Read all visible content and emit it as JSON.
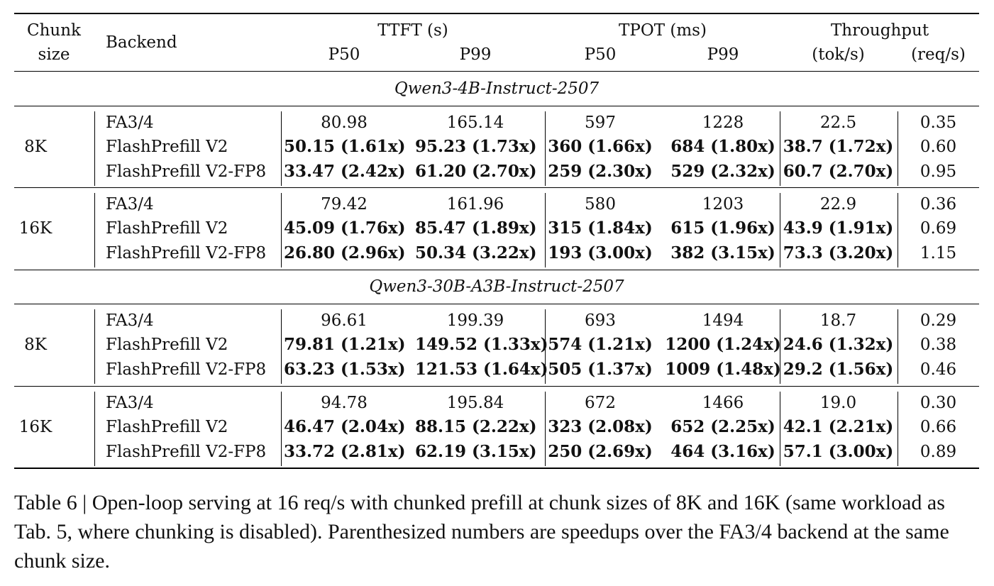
{
  "header": {
    "chunk_size_line1": "Chunk",
    "chunk_size_line2": "size",
    "backend": "Backend",
    "ttft": "TTFT (s)",
    "tpot": "TPOT (ms)",
    "throughput": "Throughput",
    "p50": "P50",
    "p99": "P99",
    "tok_s": "(tok/s)",
    "req_s": "(req/s)"
  },
  "sections": [
    {
      "title": "Qwen3-4B-Instruct-2507",
      "groups": [
        {
          "chunk": "8K",
          "rows": [
            {
              "backend": "FA3/4",
              "ttft_p50": "80.98",
              "ttft_p99": "165.14",
              "tpot_p50": "597",
              "tpot_p99": "1228",
              "tok_s": "22.5",
              "req_s": "0.35"
            },
            {
              "backend": "FlashPrefill V2",
              "ttft_p50": "50.15 (1.61x)",
              "ttft_p99": "95.23 (1.73x)",
              "tpot_p50": "360 (1.66x)",
              "tpot_p99": "684 (1.80x)",
              "tok_s": "38.7 (1.72x)",
              "req_s": "0.60"
            },
            {
              "backend": "FlashPrefill V2-FP8",
              "ttft_p50": "33.47 (2.42x)",
              "ttft_p99": "61.20 (2.70x)",
              "tpot_p50": "259 (2.30x)",
              "tpot_p99": "529 (2.32x)",
              "tok_s": "60.7 (2.70x)",
              "req_s": "0.95"
            }
          ]
        },
        {
          "chunk": "16K",
          "rows": [
            {
              "backend": "FA3/4",
              "ttft_p50": "79.42",
              "ttft_p99": "161.96",
              "tpot_p50": "580",
              "tpot_p99": "1203",
              "tok_s": "22.9",
              "req_s": "0.36"
            },
            {
              "backend": "FlashPrefill V2",
              "ttft_p50": "45.09 (1.76x)",
              "ttft_p99": "85.47 (1.89x)",
              "tpot_p50": "315 (1.84x)",
              "tpot_p99": "615 (1.96x)",
              "tok_s": "43.9 (1.91x)",
              "req_s": "0.69"
            },
            {
              "backend": "FlashPrefill V2-FP8",
              "ttft_p50": "26.80 (2.96x)",
              "ttft_p99": "50.34 (3.22x)",
              "tpot_p50": "193 (3.00x)",
              "tpot_p99": "382 (3.15x)",
              "tok_s": "73.3 (3.20x)",
              "req_s": "1.15"
            }
          ]
        }
      ]
    },
    {
      "title": "Qwen3-30B-A3B-Instruct-2507",
      "groups": [
        {
          "chunk": "8K",
          "rows": [
            {
              "backend": "FA3/4",
              "ttft_p50": "96.61",
              "ttft_p99": "199.39",
              "tpot_p50": "693",
              "tpot_p99": "1494",
              "tok_s": "18.7",
              "req_s": "0.29"
            },
            {
              "backend": "FlashPrefill V2",
              "ttft_p50": "79.81 (1.21x)",
              "ttft_p99": "149.52 (1.33x)",
              "tpot_p50": "574 (1.21x)",
              "tpot_p99": "1200 (1.24x)",
              "tok_s": "24.6 (1.32x)",
              "req_s": "0.38"
            },
            {
              "backend": "FlashPrefill V2-FP8",
              "ttft_p50": "63.23 (1.53x)",
              "ttft_p99": "121.53 (1.64x)",
              "tpot_p50": "505 (1.37x)",
              "tpot_p99": "1009 (1.48x)",
              "tok_s": "29.2 (1.56x)",
              "req_s": "0.46"
            }
          ]
        },
        {
          "chunk": "16K",
          "rows": [
            {
              "backend": "FA3/4",
              "ttft_p50": "94.78",
              "ttft_p99": "195.84",
              "tpot_p50": "672",
              "tpot_p99": "1466",
              "tok_s": "19.0",
              "req_s": "0.30"
            },
            {
              "backend": "FlashPrefill V2",
              "ttft_p50": "46.47 (2.04x)",
              "ttft_p99": "88.15 (2.22x)",
              "tpot_p50": "323 (2.08x)",
              "tpot_p99": "652 (2.25x)",
              "tok_s": "42.1 (2.21x)",
              "req_s": "0.66"
            },
            {
              "backend": "FlashPrefill V2-FP8",
              "ttft_p50": "33.72 (2.81x)",
              "ttft_p99": "62.19 (3.15x)",
              "tpot_p50": "250 (2.69x)",
              "tpot_p99": "464 (3.16x)",
              "tok_s": "57.1 (3.00x)",
              "req_s": "0.89"
            }
          ]
        }
      ]
    }
  ],
  "caption": "Table 6 | Open-loop serving at 16 req/s with chunked prefill at chunk sizes of 8K and 16K (same workload as Tab. 5, where chunking is disabled). Parenthesized numbers are speedups over the FA3/4 backend at the same chunk size."
}
